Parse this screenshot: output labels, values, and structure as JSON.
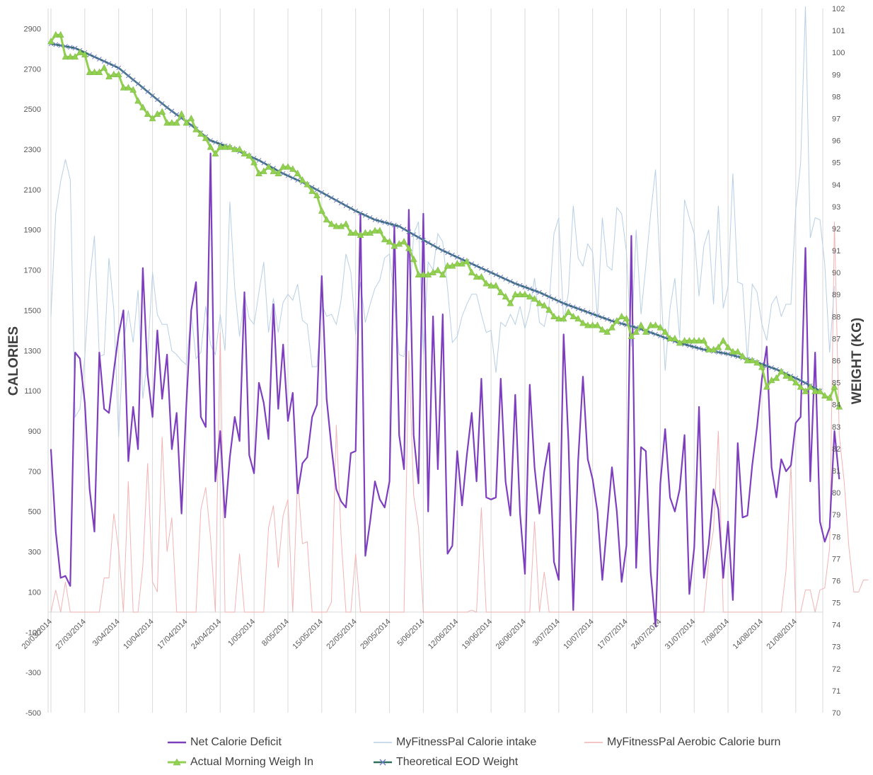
{
  "chart_data": {
    "type": "line",
    "title": "",
    "xlabel": "",
    "y_left_label": "CALORIES",
    "y_right_label": "WEIGHT (KG)",
    "y_left_lim": [
      -500,
      3000
    ],
    "y_left_ticks": [
      -500,
      -300,
      -100,
      100,
      300,
      500,
      700,
      900,
      1100,
      1300,
      1500,
      1700,
      1900,
      2100,
      2300,
      2500,
      2700,
      2900
    ],
    "y_right_lim": [
      70,
      102
    ],
    "y_right_ticks": [
      70,
      71,
      72,
      73,
      74,
      75,
      76,
      77,
      78,
      79,
      80,
      81,
      82,
      83,
      84,
      85,
      86,
      87,
      88,
      89,
      90,
      91,
      92,
      93,
      94,
      95,
      96,
      97,
      98,
      99,
      100,
      101,
      102
    ],
    "x_start": "2014-03-20",
    "x_end": "2014-08-26",
    "x_tick_labels": [
      "20/03/2014",
      "27/03/2014",
      "3/04/2014",
      "10/04/2014",
      "17/04/2014",
      "24/04/2014",
      "1/05/2014",
      "8/05/2014",
      "15/05/2014",
      "22/05/2014",
      "29/05/2014",
      "5/06/2014",
      "12/06/2014",
      "19/06/2014",
      "26/06/2014",
      "3/07/2014",
      "10/07/2014",
      "17/07/2014",
      "24/07/2014",
      "31/07/2014",
      "7/08/2014",
      "14/08/2014",
      "21/08/2014"
    ],
    "legend_position": "bottom",
    "grid": "vertical",
    "series": [
      {
        "name": "Net Calorie Deficit",
        "axis": "left",
        "color": "#7e3fbf",
        "values": [
          810,
          400,
          170,
          180,
          130,
          1290,
          1260,
          1040,
          610,
          400,
          1290,
          1010,
          990,
          1200,
          1380,
          1500,
          750,
          1020,
          810,
          1710,
          1180,
          970,
          1400,
          1060,
          1280,
          810,
          990,
          490,
          1030,
          1500,
          1640,
          970,
          920,
          2280,
          650,
          900,
          470,
          770,
          970,
          850,
          1590,
          780,
          690,
          1140,
          1040,
          860,
          1530,
          1010,
          1330,
          950,
          1090,
          590,
          740,
          770,
          970,
          1030,
          1670,
          1060,
          820,
          610,
          550,
          520,
          790,
          800,
          1980,
          280,
          450,
          650,
          560,
          520,
          650,
          1920,
          880,
          710,
          2000,
          880,
          640,
          1980,
          500,
          1470,
          710,
          1480,
          290,
          330,
          800,
          530,
          780,
          990,
          650,
          1160,
          570,
          560,
          570,
          1160,
          650,
          480,
          1080,
          490,
          190,
          1130,
          720,
          490,
          700,
          840,
          250,
          160,
          1380,
          850,
          10,
          750,
          1170,
          760,
          660,
          500,
          160,
          440,
          720,
          500,
          150,
          330,
          1870,
          220,
          820,
          800,
          200,
          -70,
          640,
          910,
          570,
          500,
          610,
          880,
          90,
          320,
          1020,
          170,
          340,
          610,
          510,
          170,
          450,
          60,
          840,
          470,
          480,
          730,
          920,
          1160,
          1320,
          720,
          570,
          760,
          700,
          730,
          940,
          970,
          1810,
          650,
          1290,
          450,
          350,
          420,
          900,
          660
        ]
      },
      {
        "name": "MyFitnessPal Calorie intake",
        "axis": "left",
        "color": "#b8cfe6",
        "values": [
          1470,
          1980,
          2140,
          2250,
          2150,
          970,
          1010,
          1270,
          1650,
          1870,
          1270,
          1280,
          1760,
          1500,
          870,
          1340,
          1500,
          1340,
          1600,
          1060,
          1270,
          1690,
          1480,
          1430,
          1430,
          1300,
          1280,
          1250,
          1230,
          1490,
          1260,
          1290,
          1520,
          1330,
          1280,
          1480,
          1300,
          2040,
          1610,
          1370,
          1580,
          1460,
          1430,
          1590,
          1740,
          1390,
          1560,
          1390,
          1540,
          1580,
          1550,
          1630,
          1450,
          1430,
          1220,
          1220,
          1530,
          1470,
          1480,
          1430,
          1550,
          1780,
          1690,
          1380,
          1640,
          1440,
          1530,
          1610,
          1650,
          1760,
          1780,
          1540,
          1280,
          1270,
          1470,
          1880,
          1940,
          1280,
          1740,
          1700,
          1880,
          1840,
          1610,
          1340,
          1370,
          1470,
          1530,
          1580,
          1580,
          1480,
          1390,
          1400,
          1190,
          1440,
          1420,
          1480,
          1430,
          1520,
          1410,
          1500,
          1660,
          1440,
          1420,
          1530,
          1880,
          1960,
          1440,
          1590,
          2020,
          1760,
          1720,
          1830,
          1790,
          1460,
          1960,
          1720,
          1700,
          2010,
          1980,
          1790,
          1320,
          1900,
          1480,
          1720,
          1980,
          2200,
          1680,
          1200,
          1510,
          1660,
          1360,
          2050,
          1960,
          1880,
          1570,
          1820,
          1900,
          1530,
          2020,
          1510,
          1620,
          2180,
          1640,
          1630,
          1250,
          1630,
          1590,
          1430,
          1350,
          1530,
          1570,
          1470,
          1530,
          1530,
          2000,
          2230,
          3010,
          1860,
          1960,
          1950,
          1730,
          1290,
          1620
        ]
      },
      {
        "name": "MyFitnessPal Aerobic Calorie burn",
        "axis": "left",
        "color": "#f2b4b4",
        "values": [
          0,
          110,
          0,
          150,
          0,
          0,
          0,
          0,
          0,
          0,
          0,
          170,
          170,
          490,
          310,
          0,
          650,
          0,
          0,
          230,
          740,
          150,
          100,
          870,
          300,
          470,
          0,
          0,
          0,
          0,
          0,
          510,
          620,
          370,
          0,
          1390,
          0,
          0,
          0,
          290,
          0,
          0,
          0,
          0,
          0,
          420,
          530,
          220,
          480,
          560,
          0,
          670,
          340,
          350,
          0,
          0,
          0,
          0,
          50,
          930,
          370,
          0,
          0,
          290,
          0,
          0,
          0,
          0,
          0,
          0,
          0,
          0,
          0,
          0,
          1300,
          580,
          420,
          0,
          0,
          0,
          0,
          0,
          0,
          0,
          0,
          0,
          0,
          10,
          0,
          520,
          0,
          0,
          0,
          0,
          0,
          0,
          0,
          0,
          0,
          0,
          450,
          0,
          200,
          0,
          0,
          0,
          0,
          0,
          0,
          0,
          0,
          0,
          0,
          0,
          0,
          0,
          0,
          0,
          0,
          0,
          0,
          0,
          0,
          0,
          0,
          0,
          0,
          0,
          0,
          0,
          0,
          0,
          0,
          0,
          0,
          0,
          260,
          410,
          900,
          0,
          0,
          0,
          0,
          0,
          0,
          0,
          0,
          0,
          0,
          0,
          0,
          0,
          210,
          730,
          0,
          0,
          110,
          110,
          0,
          110,
          120,
          320,
          1940,
          880,
          650,
          320,
          100,
          100,
          160,
          160
        ]
      },
      {
        "name": "Actual Morning Weigh In",
        "axis": "right",
        "color": "#92d050",
        "values": [
          100.5,
          100.8,
          100.8,
          99.8,
          99.8,
          99.8,
          100.0,
          99.9,
          99.1,
          99.1,
          99.1,
          99.3,
          98.9,
          99.0,
          99.0,
          98.4,
          98.4,
          98.3,
          97.8,
          97.5,
          97.2,
          97.0,
          97.2,
          97.3,
          96.8,
          96.8,
          96.8,
          97.2,
          96.8,
          97.0,
          96.5,
          96.3,
          96.1,
          95.7,
          95.4,
          95.7,
          95.7,
          95.7,
          95.6,
          95.6,
          95.4,
          95.3,
          95.0,
          94.5,
          94.6,
          94.8,
          94.6,
          94.5,
          94.8,
          94.8,
          94.7,
          94.5,
          94.2,
          94.0,
          93.7,
          93.5,
          92.8,
          92.4,
          92.2,
          92.1,
          92.1,
          92.2,
          91.8,
          91.8,
          91.7,
          91.8,
          91.8,
          91.9,
          91.9,
          91.5,
          91.4,
          91.2,
          91.3,
          91.4,
          91.1,
          90.6,
          89.9,
          89.9,
          89.9,
          90.0,
          90.1,
          89.9,
          90.3,
          90.3,
          90.4,
          90.4,
          90.5,
          90.0,
          89.8,
          89.8,
          89.5,
          89.4,
          89.4,
          89.1,
          88.9,
          88.6,
          89.0,
          89.0,
          89.0,
          88.9,
          88.8,
          88.6,
          88.5,
          88.3,
          88.0,
          87.9,
          87.9,
          88.2,
          88.0,
          87.9,
          87.7,
          87.6,
          87.6,
          87.6,
          87.4,
          87.3,
          87.5,
          87.8,
          88.0,
          87.9,
          87.1,
          87.3,
          87.6,
          87.3,
          87.6,
          87.6,
          87.5,
          87.3,
          87.0,
          87.0,
          86.8,
          86.9,
          86.9,
          86.9,
          86.9,
          86.9,
          86.5,
          86.5,
          86.6,
          86.9,
          86.6,
          86.4,
          86.4,
          86.2,
          86.0,
          86.0,
          85.9,
          85.7,
          84.8,
          85.1,
          85.2,
          85.5,
          85.3,
          85.2,
          85.0,
          84.8,
          84.6,
          84.8,
          84.6,
          84.6,
          84.4,
          84.3,
          84.8,
          83.9
        ]
      },
      {
        "name": "Theoretical EOD Weight",
        "axis": "right",
        "color": "#2f6f5f",
        "marker_color": "#6b78c8",
        "start": 100.4,
        "end": 83.9,
        "knots": [
          [
            0,
            100.4
          ],
          [
            5,
            100.2
          ],
          [
            9,
            99.8
          ],
          [
            14,
            99.3
          ],
          [
            19,
            98.4
          ],
          [
            24,
            97.5
          ],
          [
            29,
            96.7
          ],
          [
            33,
            96.0
          ],
          [
            38,
            95.6
          ],
          [
            43,
            95.1
          ],
          [
            48,
            94.5
          ],
          [
            53,
            94.0
          ],
          [
            58,
            93.4
          ],
          [
            63,
            92.8
          ],
          [
            67,
            92.4
          ],
          [
            72,
            92.1
          ],
          [
            76,
            91.6
          ],
          [
            81,
            91.0
          ],
          [
            86,
            90.5
          ],
          [
            91,
            90.0
          ],
          [
            96,
            89.5
          ],
          [
            101,
            89.1
          ],
          [
            106,
            88.6
          ],
          [
            111,
            88.2
          ],
          [
            116,
            87.8
          ],
          [
            121,
            87.5
          ],
          [
            125,
            87.2
          ],
          [
            130,
            86.8
          ],
          [
            135,
            86.5
          ],
          [
            140,
            86.3
          ],
          [
            145,
            86.0
          ],
          [
            150,
            85.6
          ],
          [
            155,
            85.1
          ],
          [
            160,
            84.5
          ],
          [
            164,
            84.1
          ],
          [
            166,
            83.9
          ]
        ]
      }
    ]
  },
  "legend": {
    "item1": "Net Calorie Deficit",
    "item2": "MyFitnessPal Calorie intake",
    "item3": "MyFitnessPal Aerobic Calorie burn",
    "item4": "Actual Morning Weigh In",
    "item5": "Theoretical EOD Weight"
  }
}
